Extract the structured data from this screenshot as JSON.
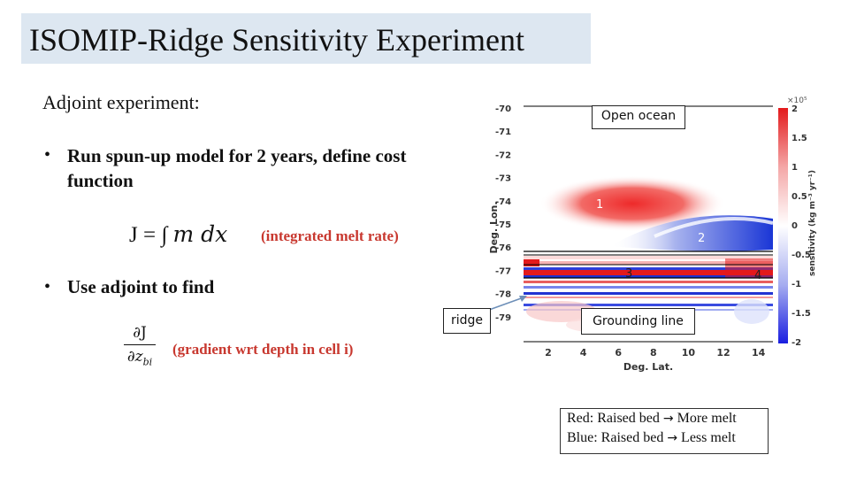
{
  "slide": {
    "title": "ISOMIP-Ridge Sensitivity Experiment",
    "subtitle": "Adjoint experiment:",
    "bullets": [
      {
        "line1": "Run spun-up model for 2 years, define cost",
        "line2": "function"
      },
      {
        "line1": "Use adjoint to find"
      }
    ],
    "equation": {
      "lhs": "J = ∫",
      "rhs": "m dx",
      "note": "(integrated melt rate)"
    },
    "gradient": {
      "numerator": "∂J",
      "denominator": "∂z",
      "subscript": "bi",
      "note": "(gradient wrt depth in cell i)"
    }
  },
  "plot": {
    "ylabel": "Deg. Lon.",
    "xlabel": "Deg. Lat.",
    "colorbar_label": "sensitivity (kg m⁻³ yr⁻¹)",
    "colorbar_exponent": "×10⁵",
    "yticks": [
      "-70",
      "-71",
      "-72",
      "-73",
      "-74",
      "-75",
      "-76",
      "-77",
      "-78",
      "-79"
    ],
    "xticks": [
      "2",
      "4",
      "6",
      "8",
      "10",
      "12",
      "14"
    ],
    "cbticks": [
      "2",
      "1.5",
      "1",
      "0.5",
      "0",
      "-0.5",
      "-1",
      "-1.5",
      "-2"
    ],
    "markers": [
      "1",
      "2",
      "3",
      "4"
    ],
    "colors": {
      "positive": "#ee2a2a",
      "negative": "#1a36d6",
      "zero": "#ffffff"
    }
  },
  "annotations": {
    "open_ocean": "Open ocean",
    "ridge": "ridge",
    "grounding_line": "Grounding line",
    "legend_red": "Red: Raised bed",
    "legend_red_result": "More melt",
    "legend_blue": "Blue: Raised bed",
    "legend_blue_result": "Less melt",
    "arrow_glyph": "→"
  }
}
